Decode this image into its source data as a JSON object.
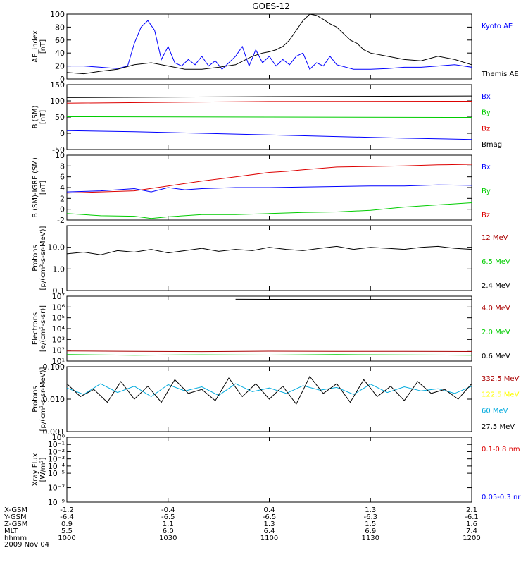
{
  "title": "GOES-12",
  "date_label": "2009 Nov 04",
  "ephemeris": {
    "rows": [
      {
        "label": "X-GSM",
        "values": [
          "-1.2",
          "-0.4",
          "0.4",
          "1.3",
          "2.1"
        ]
      },
      {
        "label": "Y-GSM",
        "values": [
          "-6.4",
          "-6.5",
          "-6.5",
          "-6.3",
          "-6.1"
        ]
      },
      {
        "label": "Z-GSM",
        "values": [
          "0.9",
          "1.1",
          "1.3",
          "1.5",
          "1.6"
        ]
      },
      {
        "label": "MLT",
        "values": [
          "5.5",
          "6.0",
          "6.4",
          "6.9",
          "7.4"
        ]
      },
      {
        "label": "hhmm",
        "values": [
          "1000",
          "1030",
          "1100",
          "1130",
          "1200"
        ]
      }
    ]
  },
  "colors": {
    "black": "#000000",
    "blue": "#0000ff",
    "green": "#00cc00",
    "red": "#dd0000",
    "darkred": "#aa0000",
    "yellow": "#ffff00",
    "cyan": "#00aadd"
  },
  "chart_data": [
    {
      "type": "line",
      "ylabel": [
        "AE_index",
        "[nT]"
      ],
      "ylim": [
        0,
        100
      ],
      "yticks": [
        {
          "v": 0,
          "label": "0"
        },
        {
          "v": 20,
          "label": "20"
        },
        {
          "v": 40,
          "label": "40"
        },
        {
          "v": 60,
          "label": "60"
        },
        {
          "v": 80,
          "label": "80"
        },
        {
          "v": 100,
          "label": "100"
        }
      ],
      "series": [
        {
          "name": "Kyoto AE",
          "color": "#0000ff",
          "x": [
            0,
            5,
            10,
            15,
            18,
            20,
            22,
            24,
            26,
            28,
            30,
            32,
            34,
            36,
            38,
            40,
            42,
            44,
            46,
            48,
            50,
            52,
            54,
            56,
            58,
            60,
            62,
            64,
            66,
            68,
            70,
            72,
            74,
            76,
            78,
            80,
            85,
            90,
            95,
            100,
            105,
            110,
            115,
            120
          ],
          "y": [
            20,
            20,
            18,
            16,
            20,
            55,
            80,
            90,
            75,
            30,
            50,
            25,
            20,
            30,
            22,
            35,
            20,
            28,
            15,
            25,
            35,
            50,
            20,
            45,
            25,
            35,
            20,
            30,
            22,
            35,
            40,
            15,
            25,
            20,
            35,
            22,
            15,
            15,
            16,
            18,
            18,
            20,
            22,
            18
          ]
        },
        {
          "name": "Themis AE",
          "color": "#000000",
          "x": [
            0,
            5,
            10,
            15,
            20,
            25,
            30,
            35,
            40,
            45,
            50,
            55,
            58,
            60,
            62,
            64,
            66,
            68,
            70,
            72,
            74,
            76,
            78,
            80,
            82,
            84,
            86,
            88,
            90,
            95,
            100,
            105,
            110,
            115,
            120
          ],
          "y": [
            10,
            8,
            12,
            15,
            22,
            25,
            20,
            15,
            15,
            18,
            22,
            35,
            40,
            42,
            45,
            50,
            60,
            75,
            90,
            100,
            98,
            92,
            85,
            80,
            70,
            60,
            55,
            45,
            40,
            35,
            30,
            28,
            35,
            30,
            22
          ]
        }
      ]
    },
    {
      "type": "line",
      "ylabel": [
        "B (SM)",
        "[nT]"
      ],
      "ylim": [
        -50,
        150
      ],
      "yticks": [
        {
          "v": -50,
          "label": "-50"
        },
        {
          "v": 0,
          "label": "0"
        },
        {
          "v": 50,
          "label": "50"
        },
        {
          "v": 100,
          "label": "100"
        },
        {
          "v": 150,
          "label": "150"
        }
      ],
      "series": [
        {
          "name": "Bx",
          "color": "#0000ff",
          "x": [
            0,
            20,
            40,
            60,
            80,
            100,
            120
          ],
          "y": [
            8,
            5,
            0,
            -5,
            -10,
            -15,
            -19
          ]
        },
        {
          "name": "By",
          "color": "#00cc00",
          "x": [
            0,
            60,
            120
          ],
          "y": [
            51,
            50,
            49
          ]
        },
        {
          "name": "Bz",
          "color": "#dd0000",
          "x": [
            0,
            60,
            120
          ],
          "y": [
            93,
            98,
            99
          ]
        },
        {
          "name": "Bmag",
          "color": "#000000",
          "x": [
            0,
            60,
            120
          ],
          "y": [
            110,
            113,
            115
          ]
        }
      ]
    },
    {
      "type": "line",
      "ylabel": [
        "B (SM)-IGRF (SM)",
        "[nT]"
      ],
      "ylim": [
        -2,
        10
      ],
      "yticks": [
        {
          "v": -2,
          "label": "-2"
        },
        {
          "v": 0,
          "label": "0"
        },
        {
          "v": 2,
          "label": "2"
        },
        {
          "v": 4,
          "label": "4"
        },
        {
          "v": 6,
          "label": "6"
        },
        {
          "v": 8,
          "label": "8"
        },
        {
          "v": 10,
          "label": "10"
        }
      ],
      "series": [
        {
          "name": "Bx",
          "color": "#0000ff",
          "x": [
            0,
            10,
            20,
            25,
            30,
            35,
            40,
            50,
            60,
            70,
            80,
            90,
            100,
            110,
            120
          ],
          "y": [
            3.2,
            3.4,
            3.8,
            3.2,
            4.0,
            3.6,
            3.8,
            4.0,
            4.0,
            4.1,
            4.2,
            4.3,
            4.3,
            4.5,
            4.4
          ]
        },
        {
          "name": "By",
          "color": "#00cc00",
          "x": [
            0,
            10,
            20,
            25,
            30,
            40,
            50,
            60,
            70,
            80,
            90,
            100,
            110,
            120
          ],
          "y": [
            -0.8,
            -1.2,
            -1.3,
            -1.7,
            -1.4,
            -1.0,
            -1.0,
            -0.8,
            -0.6,
            -0.5,
            -0.2,
            0.4,
            0.8,
            1.2
          ]
        },
        {
          "name": "Bz",
          "color": "#dd0000",
          "x": [
            0,
            10,
            20,
            30,
            40,
            50,
            60,
            65,
            70,
            80,
            90,
            100,
            110,
            120
          ],
          "y": [
            3.0,
            3.2,
            3.4,
            4.3,
            5.2,
            6.0,
            6.8,
            7.0,
            7.3,
            7.8,
            7.9,
            8.0,
            8.2,
            8.3
          ]
        }
      ]
    },
    {
      "type": "line",
      "log": true,
      "ylabel": [
        "Protons",
        "[p/(cm²-s-sr-MeV)]"
      ],
      "ylim": [
        0.1,
        100
      ],
      "yticks": [
        {
          "v": 0.1,
          "label": "0.1"
        },
        {
          "v": 1.0,
          "label": "1.0"
        },
        {
          "v": 10.0,
          "label": "10.0"
        }
      ],
      "series": [
        {
          "name": "12 MeV",
          "color": "#aa0000",
          "x": [],
          "y": []
        },
        {
          "name": "6.5 MeV",
          "color": "#00cc00",
          "x": [],
          "y": []
        },
        {
          "name": "2.4 MeV",
          "color": "#000000",
          "x": [
            0,
            5,
            10,
            15,
            20,
            25,
            30,
            35,
            40,
            45,
            50,
            55,
            60,
            65,
            70,
            75,
            80,
            85,
            90,
            95,
            100,
            105,
            110,
            115,
            120
          ],
          "y": [
            5,
            6,
            4.5,
            7,
            6,
            8,
            5.5,
            7,
            9,
            6.5,
            8,
            7,
            10,
            8,
            7,
            9,
            11,
            8,
            10,
            9,
            8,
            10,
            11,
            9,
            8
          ]
        }
      ]
    },
    {
      "type": "line",
      "log": true,
      "ylabel": [
        "Electrons",
        "[e/(cm²-s-sr)]"
      ],
      "ylim": [
        10,
        10000000
      ],
      "yticks": [
        {
          "v": 10,
          "label": "10¹"
        },
        {
          "v": 100,
          "label": "10²"
        },
        {
          "v": 1000,
          "label": "10³"
        },
        {
          "v": 10000,
          "label": "10⁴"
        },
        {
          "v": 100000,
          "label": "10⁵"
        },
        {
          "v": 1000000,
          "label": "10⁶"
        },
        {
          "v": 10000000,
          "label": "10⁷"
        }
      ],
      "series": [
        {
          "name": "4.0 MeV",
          "color": "#aa0000",
          "x": [
            0,
            20,
            40,
            60,
            80,
            100,
            120
          ],
          "y": [
            85,
            80,
            75,
            82,
            78,
            80,
            76
          ]
        },
        {
          "name": "2.0 MeV",
          "color": "#00cc00",
          "x": [
            0,
            20,
            40,
            60,
            80,
            100,
            120
          ],
          "y": [
            40,
            35,
            38,
            36,
            40,
            37,
            35
          ]
        },
        {
          "name": "0.6 MeV",
          "color": "#000000",
          "x": [
            50,
            80,
            120
          ],
          "y": [
            5200000,
            5000000,
            4800000
          ]
        }
      ]
    },
    {
      "type": "line",
      "log": true,
      "ylabel": [
        "Protons",
        "[p/(cm²-s-sr-MeV)]"
      ],
      "ylim": [
        0.001,
        0.1
      ],
      "yticks": [
        {
          "v": 0.001,
          "label": "0.001"
        },
        {
          "v": 0.01,
          "label": "0.010"
        },
        {
          "v": 0.1,
          "label": "0.100"
        }
      ],
      "series": [
        {
          "name": "332.5 MeV",
          "color": "#aa0000",
          "x": [],
          "y": []
        },
        {
          "name": "122.5 MeV",
          "color": "#ffff00",
          "x": [],
          "y": []
        },
        {
          "name": "60 MeV",
          "color": "#00aadd",
          "x": [
            0,
            5,
            10,
            15,
            20,
            25,
            30,
            35,
            40,
            45,
            50,
            55,
            60,
            65,
            70,
            75,
            80,
            85,
            90,
            95,
            100,
            105,
            110,
            115,
            120
          ],
          "y": [
            0.022,
            0.014,
            0.03,
            0.016,
            0.025,
            0.012,
            0.028,
            0.018,
            0.024,
            0.013,
            0.03,
            0.017,
            0.022,
            0.015,
            0.026,
            0.019,
            0.023,
            0.014,
            0.029,
            0.016,
            0.024,
            0.018,
            0.021,
            0.015,
            0.025
          ]
        },
        {
          "name": "27.5 MeV",
          "color": "#000000",
          "x": [
            0,
            4,
            8,
            12,
            16,
            20,
            24,
            28,
            32,
            36,
            40,
            44,
            48,
            52,
            56,
            60,
            64,
            68,
            72,
            76,
            80,
            84,
            88,
            92,
            96,
            100,
            104,
            108,
            112,
            116,
            120
          ],
          "y": [
            0.03,
            0.012,
            0.02,
            0.008,
            0.035,
            0.01,
            0.025,
            0.008,
            0.04,
            0.015,
            0.02,
            0.009,
            0.045,
            0.012,
            0.03,
            0.01,
            0.025,
            0.007,
            0.05,
            0.015,
            0.03,
            0.008,
            0.04,
            0.012,
            0.025,
            0.009,
            0.035,
            0.015,
            0.02,
            0.01,
            0.03
          ]
        }
      ]
    },
    {
      "type": "line",
      "log": true,
      "ylabel": [
        "Xray Flux",
        "[W/m²]"
      ],
      "ylim": [
        1e-09,
        1
      ],
      "yticks": [
        {
          "v": 1e-09,
          "label": "10⁻⁹"
        },
        {
          "v": 1e-07,
          "label": "10⁻⁷"
        },
        {
          "v": 1e-05,
          "label": "10⁻⁵"
        },
        {
          "v": 0.0001,
          "label": "10⁻⁴"
        },
        {
          "v": 0.001,
          "label": "10⁻³"
        },
        {
          "v": 0.01,
          "label": "10⁻²"
        },
        {
          "v": 0.1,
          "label": "10⁻¹"
        },
        {
          "v": 1,
          "label": "10⁰"
        }
      ],
      "series": [
        {
          "name": "0.1-0.8 nm",
          "color": "#dd0000",
          "x": [],
          "y": []
        },
        {
          "name": "0.05-0.3 nr",
          "color": "#0000ff",
          "x": [],
          "y": []
        }
      ]
    }
  ]
}
